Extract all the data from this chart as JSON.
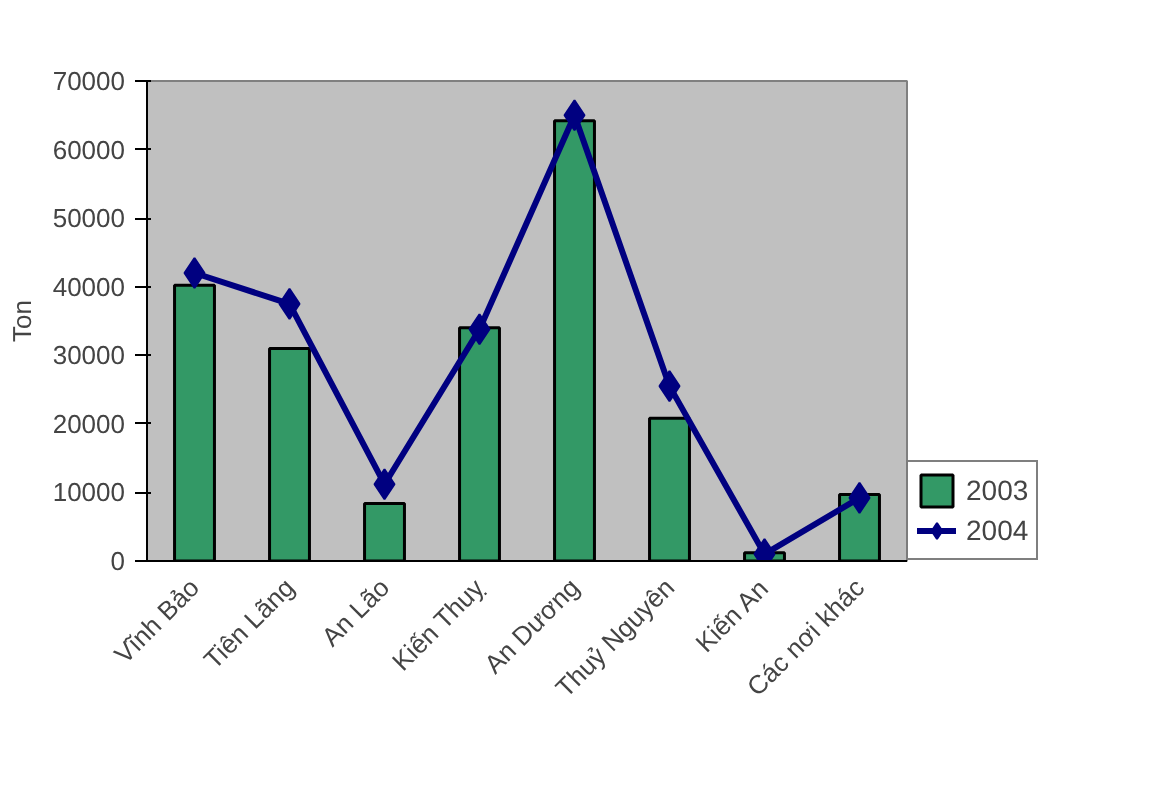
{
  "chart_data": {
    "type": "bar",
    "ylabel": "Ton",
    "categories": [
      "Vĩnh Bảo",
      "Tiên Lãng",
      "An Lão",
      "Kiến Thuỵ",
      "An Dương",
      "Thuỷ Nguyên",
      "Kiến An",
      "Các nơi khác"
    ],
    "series": [
      {
        "name": "2003",
        "color": "#339966",
        "values": [
          40200,
          31000,
          8400,
          34000,
          64200,
          20800,
          1200,
          9700
        ]
      },
      {
        "name": "2004",
        "type": "line",
        "color": "#000080",
        "marker": "diamond",
        "values": [
          42000,
          37500,
          11200,
          33800,
          65000,
          25500,
          1000,
          9200
        ]
      }
    ],
    "ylim": [
      0,
      70000
    ],
    "yticks": [
      0,
      10000,
      20000,
      30000,
      40000,
      50000,
      60000,
      70000
    ],
    "grid": false,
    "legend": "bottom right"
  }
}
